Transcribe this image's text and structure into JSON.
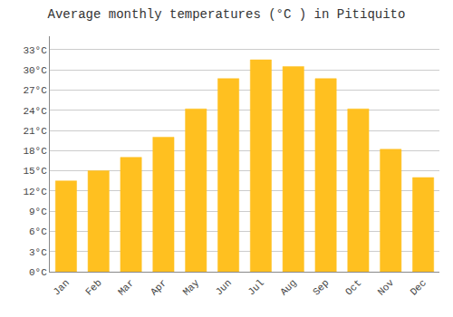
{
  "chart_data": {
    "type": "bar",
    "title": "Average monthly temperatures (°C ) in Pitiquito",
    "categories": [
      "Jan",
      "Feb",
      "Mar",
      "Apr",
      "May",
      "Jun",
      "Jul",
      "Aug",
      "Sep",
      "Oct",
      "Nov",
      "Dec"
    ],
    "values": [
      13.5,
      15.0,
      17.0,
      20.0,
      24.2,
      28.7,
      31.5,
      30.5,
      28.7,
      24.2,
      18.2,
      14.0
    ],
    "color": "#FFC020",
    "ylim": [
      0,
      35
    ],
    "yticks": [
      {
        "value": 0,
        "label": "0°C"
      },
      {
        "value": 3,
        "label": "3°C"
      },
      {
        "value": 6,
        "label": "6°C"
      },
      {
        "value": 9,
        "label": "9°C"
      },
      {
        "value": 12,
        "label": "12°C"
      },
      {
        "value": 15,
        "label": "15°C"
      },
      {
        "value": 18,
        "label": "18°C"
      },
      {
        "value": 21,
        "label": "21°C"
      },
      {
        "value": 24,
        "label": "24°C"
      },
      {
        "value": 27,
        "label": "27°C"
      },
      {
        "value": 30,
        "label": "30°C"
      },
      {
        "value": 33,
        "label": "33°C"
      }
    ],
    "grid": true
  }
}
